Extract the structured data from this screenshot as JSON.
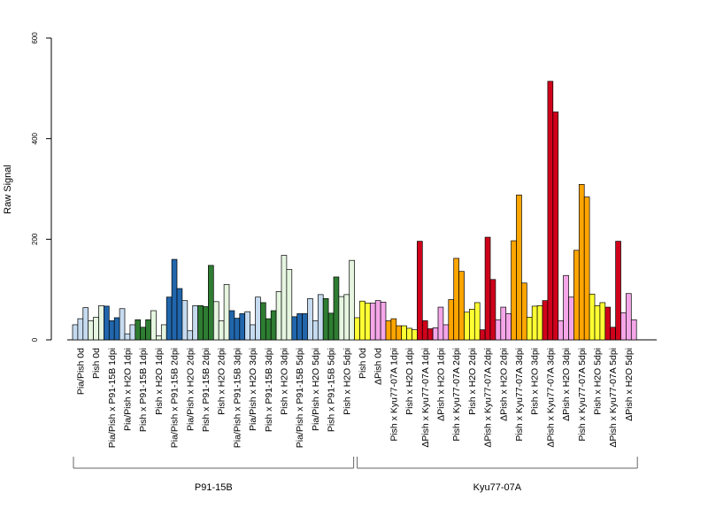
{
  "chart_data": {
    "type": "bar",
    "ylabel": "Raw Signal",
    "ylim": [
      0,
      600
    ],
    "yticks": [
      0,
      200,
      400,
      600
    ],
    "categories": [
      "Pia/Pish 0d",
      "Pish 0d",
      "Pia/Pish x P91-15B 1dpi",
      "Pia/Pish x H2O 1dpi",
      "Pish x P91-15B 1dpi",
      "Pish x H2O 1dpi",
      "Pia/Pish x P91-15B 2dpi",
      "Pia/Pish x H2O 2dpi",
      "Pish x P91-15B 2dpi",
      "Pish x H2O 2dpi",
      "Pia/Pish x P91-15B 3dpi",
      "Pia/Pish x H2O 3dpi",
      "Pish x P91-15B 3dpi",
      "Pish x H2O 3dpi",
      "Pia/Pish x P91-15B 5dpi",
      "Pia/Pish x H2O 5dpi",
      "Pish x P91-15B 5dpi",
      "Pish x H2O 5dpi",
      "Pish 0d",
      "ΔPish 0d",
      "Pish x Kyu77-07A 1dpi",
      "Pish x H2O 1dpi",
      "ΔPish x Kyu77-07A 1dpi",
      "ΔPish x H2O 1dpi",
      "Pish x Kyu77-07A 2dpi",
      "Pish x H2O 2dpi",
      "ΔPish x Kyu77-07A 2dpi",
      "ΔPish x H2O 2dpi",
      "Pish x Kyu77-07A 3dpi",
      "Pish x H2O 3dpi",
      "ΔPish x Kyu77-07A 3dpi",
      "ΔPish x H2O 3dpi",
      "Pish x Kyu77-07A 5dpi",
      "Pish x H2O 5dpi",
      "ΔPish x Kyu77-07A 5dpi",
      "ΔPish x H2O 5dpi"
    ],
    "category_colors": [
      "#c6dbef",
      "#e5f5e0",
      "#2166ac",
      "#c6dbef",
      "#2e7d32",
      "#e5f5e0",
      "#2166ac",
      "#c6dbef",
      "#2e7d32",
      "#e5f5e0",
      "#2166ac",
      "#c6dbef",
      "#2e7d32",
      "#e5f5e0",
      "#2166ac",
      "#c6dbef",
      "#2e7d32",
      "#e5f5e0",
      "#ffff33",
      "#f4a6e8",
      "#ffa500",
      "#ffff33",
      "#d0021b",
      "#f4a6e8",
      "#ffa500",
      "#ffff33",
      "#d0021b",
      "#f4a6e8",
      "#ffa500",
      "#ffff33",
      "#d0021b",
      "#f4a6e8",
      "#ffa500",
      "#ffff33",
      "#d0021b",
      "#f4a6e8"
    ],
    "values": [
      [
        30,
        42,
        64
      ],
      [
        38,
        45,
        68
      ],
      [
        67,
        38,
        44
      ],
      [
        62,
        12,
        30
      ],
      [
        40,
        25,
        40
      ],
      [
        58,
        8,
        30
      ],
      [
        85,
        160,
        102
      ],
      [
        78,
        18,
        68
      ],
      [
        68,
        66,
        148
      ],
      [
        76,
        38,
        110
      ],
      [
        58,
        43,
        52
      ],
      [
        56,
        30,
        85
      ],
      [
        74,
        42,
        58
      ],
      [
        96,
        168,
        140
      ],
      [
        46,
        52,
        52
      ],
      [
        82,
        38,
        90
      ],
      [
        82,
        53,
        125
      ],
      [
        86,
        90,
        158
      ],
      [
        44,
        77,
        73
      ],
      [
        73,
        78,
        75
      ],
      [
        38,
        42,
        28
      ],
      [
        28,
        23,
        20
      ],
      [
        196,
        38,
        22
      ],
      [
        24,
        65,
        30
      ],
      [
        80,
        162,
        136
      ],
      [
        55,
        61,
        74
      ],
      [
        20,
        204,
        120
      ],
      [
        40,
        65,
        52
      ],
      [
        197,
        288,
        113
      ],
      [
        45,
        67,
        68
      ],
      [
        78,
        514,
        453
      ],
      [
        38,
        128,
        85
      ],
      [
        178,
        309,
        284
      ],
      [
        91,
        68,
        74
      ],
      [
        65,
        25,
        196
      ],
      [
        54,
        92,
        40
      ]
    ],
    "groups": [
      {
        "label": "P91-15B",
        "from": 0,
        "to": 17
      },
      {
        "label": "Kyu77-07A",
        "from": 18,
        "to": 35
      }
    ]
  }
}
